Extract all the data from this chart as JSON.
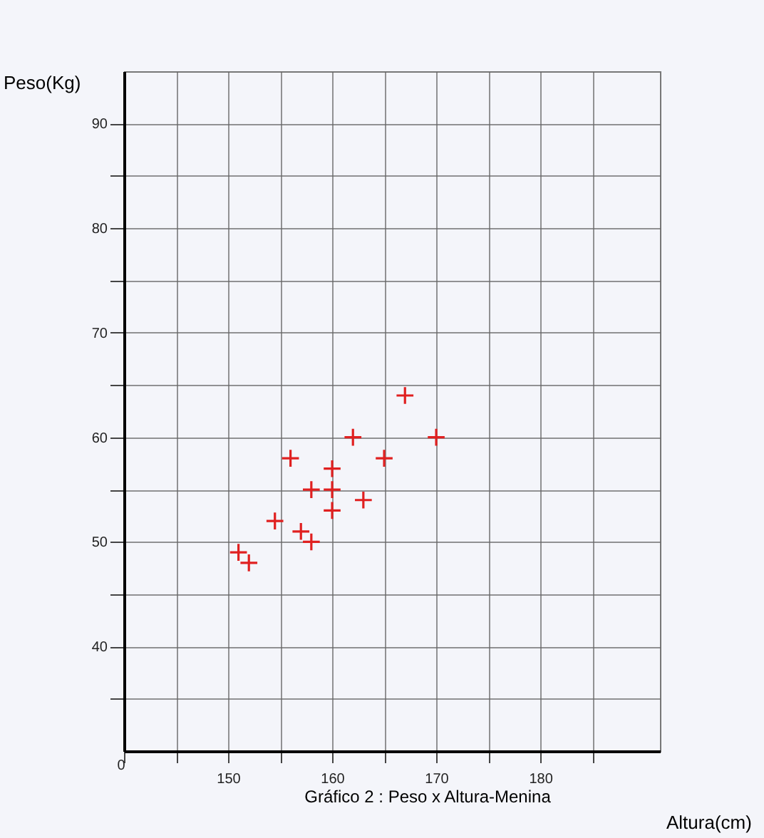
{
  "chart_data": {
    "type": "scatter",
    "title": "Gráfico 2 : Peso x Altura-Menina",
    "xlabel": "Altura(cm)",
    "ylabel": "Peso(Kg)",
    "x": [
      151,
      152,
      154.5,
      157,
      158,
      156,
      158,
      160,
      160,
      160,
      162,
      163,
      165,
      170,
      167
    ],
    "series": [
      {
        "color": "#e02020",
        "values": [
          49,
          48,
          52,
          51,
          50,
          58,
          55,
          57,
          55,
          53,
          60,
          54,
          58,
          60,
          64
        ]
      }
    ],
    "xlim": [
      140,
      191.5
    ],
    "ylim": [
      30,
      95
    ],
    "annotations": [
      "0"
    ],
    "xticks": [
      {
        "value": 140,
        "label": null
      },
      {
        "value": 145,
        "label": null
      },
      150,
      {
        "value": 155,
        "label": null
      },
      160,
      {
        "value": 165,
        "label": null
      },
      170,
      {
        "value": 175,
        "label": null
      },
      180,
      {
        "value": 185,
        "label": null
      }
    ],
    "yticks": [
      {
        "value": 35,
        "label": null
      },
      40,
      {
        "value": 45,
        "label": null
      },
      50,
      {
        "value": 55,
        "label": null
      },
      60,
      {
        "value": 65,
        "label": null
      },
      70,
      {
        "value": 75,
        "label": null
      },
      80,
      {
        "value": 85,
        "label": null
      },
      90
    ],
    "grid": true,
    "marker": "cross"
  }
}
